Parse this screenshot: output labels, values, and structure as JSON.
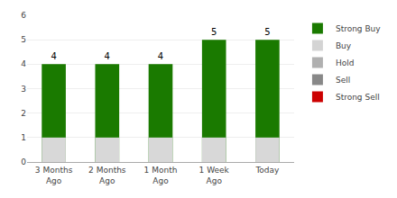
{
  "chart_data": {
    "type": "bar",
    "categories": [
      "3 Months\nAgo",
      "2 Months\nAgo",
      "1 Month\nAgo",
      "1 Week\nAgo",
      "Today"
    ],
    "series": [
      {
        "name": "Strong Buy",
        "color": "#1a7a00",
        "values": [
          4,
          4,
          4,
          5,
          5
        ],
        "data_labels": true
      },
      {
        "color": "#d8d8d8",
        "values": [
          1,
          1,
          1,
          1,
          1
        ]
      },
      {
        "name": "Buy",
        "color": "#d4d4d4",
        "values": [
          null,
          null,
          null,
          null,
          null
        ]
      },
      {
        "name": "Hold",
        "color": "#b0b0b0",
        "values": [
          null,
          null,
          null,
          null,
          null
        ]
      },
      {
        "name": "Sell",
        "color": "#888888",
        "values": [
          null,
          null,
          null,
          null,
          null
        ]
      },
      {
        "name": "Strong Sell",
        "color": "#cc0000",
        "values": [
          null,
          null,
          null,
          null,
          null
        ]
      }
    ],
    "stacked": false,
    "ylim": [
      0,
      6
    ],
    "yticks": [
      0,
      1,
      2,
      3,
      4,
      5,
      6
    ],
    "grid": true,
    "legend": "right"
  }
}
